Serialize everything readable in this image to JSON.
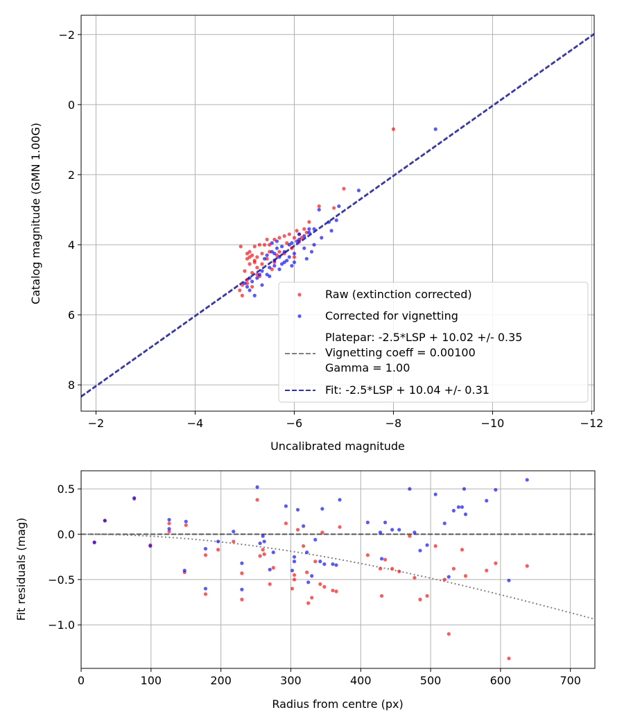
{
  "chart_data": [
    {
      "type": "scatter",
      "xlabel": "Uncalibrated magnitude",
      "ylabel": "Catalog magnitude (GMN 1.00G)",
      "xlim": [
        -1.7,
        -12.05
      ],
      "ylim": [
        8.75,
        -2.55
      ],
      "grid": true,
      "x_ticks": [
        {
          "value": -2,
          "label": "−2"
        },
        {
          "value": -4,
          "label": "−4"
        },
        {
          "value": -6,
          "label": "−6"
        },
        {
          "value": -8,
          "label": "−8"
        },
        {
          "value": -10,
          "label": "−10"
        },
        {
          "value": -12,
          "label": "−12"
        }
      ],
      "y_ticks": [
        {
          "value": -2,
          "label": "−2"
        },
        {
          "value": 0,
          "label": "0"
        },
        {
          "value": 2,
          "label": "2"
        },
        {
          "value": 4,
          "label": "4"
        },
        {
          "value": 6,
          "label": "6"
        },
        {
          "value": 8,
          "label": "8"
        }
      ],
      "legend": {
        "position": "lower-right",
        "entries": [
          {
            "label": "Raw (extinction corrected)",
            "kind": "marker",
            "color": "#ff0000"
          },
          {
            "label": "Corrected for vignetting",
            "kind": "marker",
            "color": "#0000ff"
          },
          {
            "label": "Platepar: -2.5*LSP + 10.02 +/- 0.35",
            "label_line2": "Vignetting coeff = 0.00100",
            "label_line3": "Gamma = 1.00",
            "kind": "dashed-line",
            "color": "#7f7f7f"
          },
          {
            "label": "Fit: -2.5*LSP + 10.04 +/- 0.31",
            "kind": "dashed-line",
            "color": "#2a2ad4"
          }
        ]
      },
      "lines": [
        {
          "name": "Platepar",
          "slope": 1,
          "intercept": 10.02,
          "color": "#7f7f7f",
          "dash": "dashed"
        },
        {
          "name": "Fit",
          "slope": 1,
          "intercept": 10.04,
          "color": "#2a2ad4",
          "dash": "dashed"
        }
      ],
      "series": [
        {
          "name": "Raw (extinction corrected)",
          "color": "#ff0000",
          "points": [
            [
              -8.0,
              0.7
            ],
            [
              -7.0,
              2.4
            ],
            [
              -6.8,
              2.95
            ],
            [
              -6.5,
              2.9
            ],
            [
              -6.3,
              3.35
            ],
            [
              -6.2,
              3.55
            ],
            [
              -6.05,
              3.6
            ],
            [
              -6.1,
              3.7
            ],
            [
              -5.9,
              3.7
            ],
            [
              -5.8,
              3.75
            ],
            [
              -5.7,
              3.8
            ],
            [
              -5.6,
              3.85
            ],
            [
              -5.45,
              3.85
            ],
            [
              -5.5,
              4.0
            ],
            [
              -5.3,
              4.0
            ],
            [
              -5.2,
              4.05
            ],
            [
              -5.1,
              4.2
            ],
            [
              -5.15,
              4.3
            ],
            [
              -5.25,
              4.35
            ],
            [
              -5.05,
              4.4
            ],
            [
              -5.2,
              4.5
            ],
            [
              -5.1,
              4.55
            ],
            [
              -5.25,
              4.65
            ],
            [
              -5.0,
              4.75
            ],
            [
              -5.15,
              4.8
            ],
            [
              -5.3,
              4.9
            ],
            [
              -5.05,
              5.0
            ],
            [
              -4.95,
              5.15
            ],
            [
              -4.9,
              5.3
            ],
            [
              -4.95,
              5.45
            ],
            [
              -4.92,
              4.05
            ],
            [
              -5.35,
              4.25
            ],
            [
              -5.45,
              4.4
            ],
            [
              -5.7,
              4.2
            ],
            [
              -5.95,
              4.1
            ],
            [
              -6.1,
              3.9
            ],
            [
              -5.35,
              4.55
            ],
            [
              -5.55,
              4.7
            ],
            [
              -5.65,
              4.3
            ],
            [
              -5.8,
              4.25
            ],
            [
              -6.0,
              4.35
            ],
            [
              -5.25,
              4.85
            ],
            [
              -5.05,
              5.1
            ],
            [
              -5.15,
              5.2
            ],
            [
              -6.25,
              3.65
            ],
            [
              -6.15,
              3.8
            ],
            [
              -5.6,
              4.5
            ],
            [
              -5.5,
              4.2
            ],
            [
              -5.85,
              3.95
            ],
            [
              -5.05,
              4.25
            ],
            [
              -5.1,
              4.35
            ],
            [
              -5.2,
              4.45
            ],
            [
              -6.0,
              3.8
            ],
            [
              -5.4,
              4.0
            ]
          ]
        },
        {
          "name": "Corrected for vignetting",
          "color": "#0000ff",
          "points": [
            [
              -8.85,
              0.7
            ],
            [
              -7.3,
              2.45
            ],
            [
              -6.9,
              2.9
            ],
            [
              -6.85,
              3.3
            ],
            [
              -6.7,
              3.35
            ],
            [
              -6.75,
              3.6
            ],
            [
              -6.5,
              3.0
            ],
            [
              -6.4,
              3.55
            ],
            [
              -6.3,
              3.65
            ],
            [
              -6.2,
              3.75
            ],
            [
              -6.1,
              3.85
            ],
            [
              -6.05,
              3.9
            ],
            [
              -5.9,
              4.0
            ],
            [
              -5.75,
              4.05
            ],
            [
              -5.65,
              4.1
            ],
            [
              -5.55,
              4.2
            ],
            [
              -5.45,
              4.3
            ],
            [
              -5.7,
              4.35
            ],
            [
              -5.85,
              4.45
            ],
            [
              -5.95,
              4.6
            ],
            [
              -5.75,
              4.55
            ],
            [
              -5.6,
              4.45
            ],
            [
              -5.5,
              4.65
            ],
            [
              -5.35,
              4.75
            ],
            [
              -5.3,
              4.85
            ],
            [
              -5.25,
              4.95
            ],
            [
              -5.1,
              4.95
            ],
            [
              -5.0,
              5.1
            ],
            [
              -5.05,
              5.2
            ],
            [
              -5.2,
              5.45
            ],
            [
              -5.45,
              4.85
            ],
            [
              -5.6,
              4.6
            ],
            [
              -6.2,
              4.1
            ],
            [
              -6.35,
              4.2
            ],
            [
              -6.4,
              4.0
            ],
            [
              -6.55,
              3.8
            ],
            [
              -5.8,
              4.2
            ],
            [
              -5.9,
              4.35
            ],
            [
              -6.0,
              4.25
            ],
            [
              -5.65,
              3.9
            ],
            [
              -5.55,
              3.95
            ],
            [
              -5.4,
              4.4
            ],
            [
              -5.5,
              4.9
            ],
            [
              -5.1,
              5.3
            ],
            [
              -5.15,
              5.05
            ],
            [
              -5.35,
              5.15
            ],
            [
              -6.1,
              3.7
            ],
            [
              -6.3,
              3.55
            ],
            [
              -5.95,
              3.95
            ],
            [
              -5.8,
              4.5
            ],
            [
              -5.7,
              4.7
            ],
            [
              -5.6,
              4.25
            ],
            [
              -6.0,
              4.5
            ],
            [
              -6.25,
              4.4
            ]
          ]
        }
      ]
    },
    {
      "type": "scatter",
      "xlabel": "Radius from centre (px)",
      "ylabel": "Fit residuals (mag)",
      "xlim": [
        0,
        735
      ],
      "ylim": [
        -1.48,
        0.7
      ],
      "grid": true,
      "x_ticks": [
        {
          "value": 0,
          "label": "0"
        },
        {
          "value": 100,
          "label": "100"
        },
        {
          "value": 200,
          "label": "200"
        },
        {
          "value": 300,
          "label": "300"
        },
        {
          "value": 400,
          "label": "400"
        },
        {
          "value": 500,
          "label": "500"
        },
        {
          "value": 600,
          "label": "600"
        },
        {
          "value": 700,
          "label": "700"
        }
      ],
      "y_ticks": [
        {
          "value": 0.5,
          "label": "0.5"
        },
        {
          "value": 0.0,
          "label": "0.0"
        },
        {
          "value": -0.5,
          "label": "−0.5"
        },
        {
          "value": -1.0,
          "label": "−1.0"
        }
      ],
      "lines": [
        {
          "name": "zero",
          "type": "horizontal",
          "y": 0.0,
          "color": "#555555",
          "dash": "dashed"
        },
        {
          "name": "vignetting-model",
          "type": "curve",
          "function": "2.5*log10(cos(atan(0.00100*r))^4)",
          "color": "#7f7f7f",
          "dash": "dotted"
        }
      ],
      "series": [
        {
          "name": "Raw",
          "color": "#ff0000",
          "points": [
            [
              19,
              -0.09
            ],
            [
              34,
              0.15
            ],
            [
              76,
              0.39
            ],
            [
              99,
              -0.12
            ],
            [
              126,
              0.12
            ],
            [
              126,
              0.03
            ],
            [
              150,
              0.1
            ],
            [
              148,
              -0.42
            ],
            [
              178,
              -0.23
            ],
            [
              178,
              -0.66
            ],
            [
              196,
              -0.17
            ],
            [
              218,
              -0.08
            ],
            [
              230,
              -0.43
            ],
            [
              230,
              -0.72
            ],
            [
              252,
              0.38
            ],
            [
              256,
              -0.24
            ],
            [
              260,
              -0.17
            ],
            [
              262,
              -0.22
            ],
            [
              270,
              -0.55
            ],
            [
              275,
              -0.37
            ],
            [
              293,
              0.12
            ],
            [
              302,
              -0.6
            ],
            [
              305,
              -0.45
            ],
            [
              305,
              -0.5
            ],
            [
              310,
              0.05
            ],
            [
              318,
              -0.13
            ],
            [
              323,
              -0.42
            ],
            [
              325,
              -0.76
            ],
            [
              330,
              -0.7
            ],
            [
              335,
              -0.3
            ],
            [
              342,
              -0.55
            ],
            [
              345,
              0.02
            ],
            [
              348,
              -0.58
            ],
            [
              360,
              -0.62
            ],
            [
              365,
              -0.63
            ],
            [
              370,
              0.08
            ],
            [
              410,
              -0.23
            ],
            [
              428,
              -0.38
            ],
            [
              430,
              -0.68
            ],
            [
              435,
              -0.28
            ],
            [
              445,
              -0.38
            ],
            [
              455,
              -0.41
            ],
            [
              470,
              -0.02
            ],
            [
              477,
              -0.48
            ],
            [
              485,
              -0.72
            ],
            [
              495,
              -0.68
            ],
            [
              507,
              -0.13
            ],
            [
              520,
              -0.5
            ],
            [
              526,
              -1.1
            ],
            [
              533,
              -0.38
            ],
            [
              545,
              -0.17
            ],
            [
              550,
              -0.46
            ],
            [
              580,
              -0.4
            ],
            [
              593,
              -0.32
            ],
            [
              612,
              -1.37
            ],
            [
              638,
              -0.35
            ]
          ]
        },
        {
          "name": "Corrected",
          "color": "#0000ff",
          "points": [
            [
              19,
              -0.09
            ],
            [
              34,
              0.15
            ],
            [
              76,
              0.4
            ],
            [
              99,
              -0.13
            ],
            [
              126,
              0.16
            ],
            [
              126,
              0.06
            ],
            [
              150,
              0.14
            ],
            [
              148,
              -0.4
            ],
            [
              178,
              -0.16
            ],
            [
              178,
              -0.6
            ],
            [
              196,
              -0.08
            ],
            [
              218,
              0.03
            ],
            [
              230,
              -0.32
            ],
            [
              230,
              -0.61
            ],
            [
              252,
              0.52
            ],
            [
              256,
              -0.1
            ],
            [
              260,
              -0.02
            ],
            [
              262,
              -0.08
            ],
            [
              270,
              -0.39
            ],
            [
              275,
              -0.2
            ],
            [
              293,
              0.31
            ],
            [
              302,
              -0.4
            ],
            [
              305,
              -0.25
            ],
            [
              305,
              -0.3
            ],
            [
              310,
              0.27
            ],
            [
              318,
              0.09
            ],
            [
              323,
              -0.2
            ],
            [
              325,
              -0.53
            ],
            [
              330,
              -0.46
            ],
            [
              335,
              -0.06
            ],
            [
              342,
              -0.3
            ],
            [
              345,
              0.28
            ],
            [
              348,
              -0.33
            ],
            [
              360,
              -0.33
            ],
            [
              365,
              -0.34
            ],
            [
              370,
              0.38
            ],
            [
              410,
              0.13
            ],
            [
              428,
              0.02
            ],
            [
              430,
              -0.27
            ],
            [
              435,
              0.13
            ],
            [
              445,
              0.05
            ],
            [
              455,
              0.05
            ],
            [
              470,
              0.5
            ],
            [
              477,
              0.02
            ],
            [
              485,
              -0.18
            ],
            [
              495,
              -0.12
            ],
            [
              507,
              0.44
            ],
            [
              520,
              0.12
            ],
            [
              526,
              -0.47
            ],
            [
              533,
              0.26
            ],
            [
              540,
              0.3
            ],
            [
              545,
              0.3
            ],
            [
              550,
              0.22
            ],
            [
              548,
              0.5
            ],
            [
              580,
              0.37
            ],
            [
              593,
              0.49
            ],
            [
              612,
              -0.51
            ],
            [
              638,
              0.6
            ]
          ]
        }
      ]
    }
  ]
}
